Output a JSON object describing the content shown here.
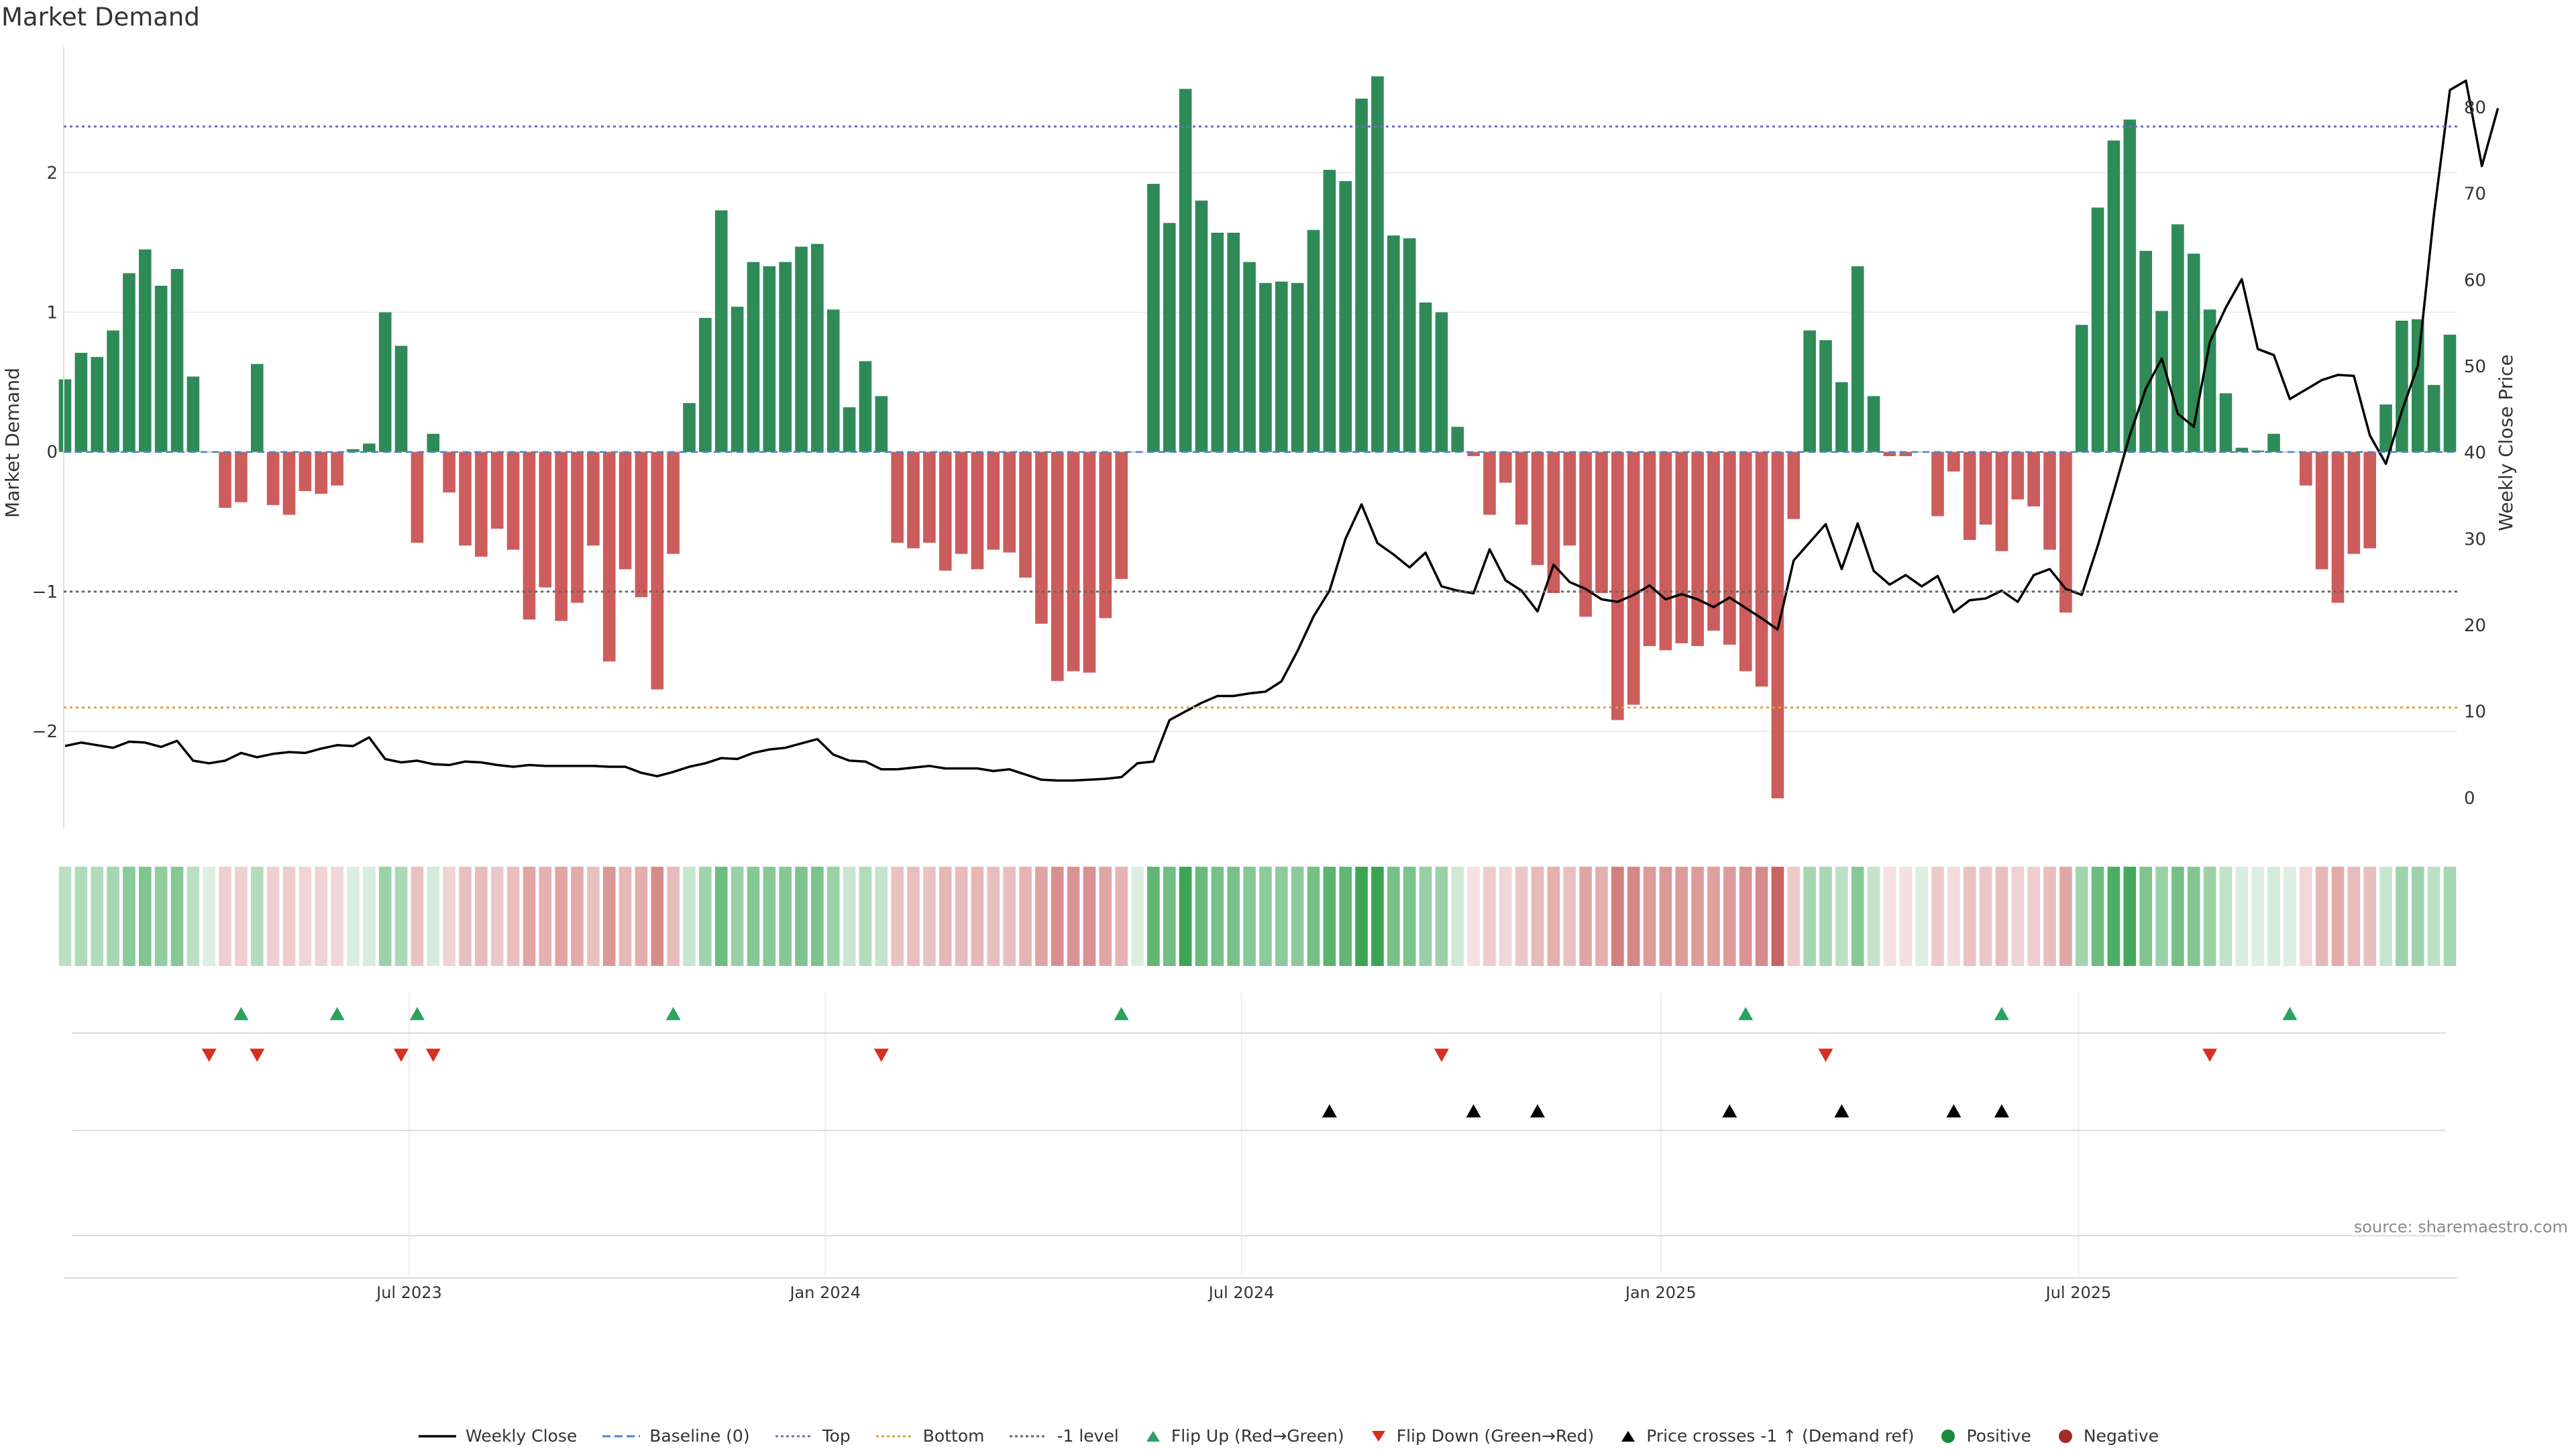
{
  "chart_data": {
    "type": "bar",
    "title": "Market Demand",
    "ylabel_left": "Market Demand",
    "ylabel_right": "Weekly Close Price",
    "source": "source: sharemaestro.com",
    "ylim_left": [
      -2.6,
      2.9
    ],
    "ylim_right": [
      -2,
      87
    ],
    "left_ticks": [
      {
        "v": 2,
        "label": "2"
      },
      {
        "v": 1,
        "label": "1"
      },
      {
        "v": 0,
        "label": "0"
      },
      {
        "v": -1,
        "label": "−1"
      },
      {
        "v": -2,
        "label": "−2"
      }
    ],
    "right_ticks": [
      {
        "v": 80,
        "label": "80"
      },
      {
        "v": 70,
        "label": "70"
      },
      {
        "v": 60,
        "label": "60"
      },
      {
        "v": 50,
        "label": "50"
      },
      {
        "v": 40,
        "label": "40"
      },
      {
        "v": 30,
        "label": "30"
      },
      {
        "v": 20,
        "label": "20"
      },
      {
        "v": 10,
        "label": "10"
      },
      {
        "v": 0,
        "label": "0"
      }
    ],
    "x_ticks": [
      {
        "i": 21.5,
        "label": "Jul 2023"
      },
      {
        "i": 47.5,
        "label": "Jan 2024"
      },
      {
        "i": 73.5,
        "label": "Jul 2024"
      },
      {
        "i": 99.7,
        "label": "Jan 2025"
      },
      {
        "i": 125.8,
        "label": "Jul 2025"
      }
    ],
    "reference_lines": {
      "top": 2.33,
      "bottom": -1.83,
      "minus_one": -1.0,
      "baseline": 0
    },
    "market_demand": [
      0.52,
      0.71,
      0.68,
      0.87,
      1.28,
      1.45,
      1.19,
      1.31,
      0.54,
      0.0,
      -0.4,
      -0.36,
      0.63,
      -0.38,
      -0.45,
      -0.28,
      -0.3,
      -0.24,
      0.02,
      0.06,
      1.0,
      0.76,
      -0.65,
      0.13,
      -0.29,
      -0.67,
      -0.75,
      -0.55,
      -0.7,
      -1.2,
      -0.97,
      -1.21,
      -1.08,
      -0.67,
      -1.5,
      -0.84,
      -1.04,
      -1.7,
      -0.73,
      0.35,
      0.96,
      1.73,
      1.04,
      1.36,
      1.33,
      1.36,
      1.47,
      1.49,
      1.02,
      0.32,
      0.65,
      0.4,
      -0.65,
      -0.69,
      -0.65,
      -0.85,
      -0.73,
      -0.84,
      -0.7,
      -0.72,
      -0.9,
      -1.23,
      -1.64,
      -1.57,
      -1.58,
      -1.19,
      -0.91,
      0.0,
      1.92,
      1.64,
      2.6,
      1.8,
      1.57,
      1.57,
      1.36,
      1.21,
      1.22,
      1.21,
      1.59,
      2.02,
      1.94,
      2.53,
      2.69,
      1.55,
      1.53,
      1.07,
      1.0,
      0.18,
      -0.03,
      -0.45,
      -0.22,
      -0.52,
      -0.81,
      -1.01,
      -0.67,
      -1.18,
      -1.01,
      -1.92,
      -1.81,
      -1.39,
      -1.42,
      -1.37,
      -1.39,
      -1.28,
      -1.38,
      -1.57,
      -1.68,
      -2.48,
      -0.48,
      0.87,
      0.8,
      0.5,
      1.33,
      0.4,
      -0.03,
      -0.03,
      0.0,
      -0.46,
      -0.14,
      -0.63,
      -0.52,
      -0.71,
      -0.34,
      -0.39,
      -0.7,
      -1.15,
      0.91,
      1.75,
      2.23,
      2.38,
      1.44,
      1.01,
      1.63,
      1.42,
      1.02,
      0.42,
      0.03,
      0.01,
      0.13,
      0.0,
      -0.24,
      -0.84,
      -1.08,
      -0.73,
      -0.69,
      0.34,
      0.94,
      0.95,
      0.48,
      0.84
    ],
    "weekly_close": [
      6.0,
      6.4,
      6.1,
      5.8,
      6.5,
      6.4,
      5.9,
      6.6,
      4.3,
      4.0,
      4.3,
      5.2,
      4.7,
      5.1,
      5.3,
      5.2,
      5.7,
      6.1,
      6.0,
      7.0,
      4.5,
      4.1,
      4.3,
      3.9,
      3.8,
      4.2,
      4.1,
      3.8,
      3.6,
      3.8,
      3.7,
      3.7,
      3.7,
      3.7,
      3.6,
      3.6,
      2.9,
      2.5,
      3.0,
      3.6,
      4.0,
      4.6,
      4.5,
      5.2,
      5.6,
      5.8,
      6.3,
      6.8,
      5.0,
      4.3,
      4.2,
      3.3,
      3.3,
      3.5,
      3.7,
      3.4,
      3.4,
      3.4,
      3.1,
      3.3,
      2.7,
      2.1,
      2.0,
      2.0,
      2.1,
      2.2,
      2.4,
      4.0,
      4.2,
      9.0,
      10.0,
      11.0,
      11.8,
      11.8,
      12.1,
      12.3,
      13.5,
      17.0,
      21.0,
      24.0,
      30.0,
      34.0,
      29.5,
      28.2,
      26.7,
      28.4,
      24.5,
      24.0,
      23.7,
      28.8,
      25.2,
      24.0,
      21.6,
      27.0,
      25.0,
      24.2,
      23.0,
      22.7,
      23.5,
      24.6,
      23.0,
      23.6,
      23.0,
      22.1,
      23.2,
      22.0,
      20.8,
      19.5,
      27.5,
      29.6,
      31.7,
      26.5,
      31.8,
      26.3,
      24.7,
      25.8,
      24.5,
      25.7,
      21.5,
      22.9,
      23.1,
      24.0,
      22.7,
      25.8,
      26.5,
      24.2,
      23.5,
      29.2,
      35.5,
      42.0,
      47.4,
      50.9,
      44.5,
      43.0,
      52.8,
      56.8,
      60.1,
      52.0,
      51.3,
      46.2,
      47.3,
      48.4,
      49.0,
      48.9,
      42.0,
      38.7,
      44.8,
      50.1,
      67.5,
      82.0,
      83.1,
      73.2,
      79.9
    ],
    "flip_up_index": [
      11,
      17,
      22,
      38,
      66,
      105,
      121,
      139
    ],
    "flip_down_index": [
      9,
      12,
      21,
      23,
      51,
      86,
      110,
      134
    ],
    "price_cross_index": [
      79,
      88,
      92,
      104,
      111,
      118,
      121
    ],
    "legend": [
      {
        "label": "Weekly Close",
        "kind": "line-solid",
        "color": "#000000"
      },
      {
        "label": "Baseline (0)",
        "kind": "line-dash",
        "color": "#4a86c8"
      },
      {
        "label": "Top",
        "kind": "line-dot",
        "color": "#7070a0"
      },
      {
        "label": "Bottom",
        "kind": "line-dot",
        "color": "#e0a040"
      },
      {
        "label": "-1 level",
        "kind": "line-dot",
        "color": "#666666"
      },
      {
        "label": "Flip Up (Red→Green)",
        "kind": "tri-up",
        "color": "#2ca25f"
      },
      {
        "label": "Flip Down (Green→Red)",
        "kind": "tri-down",
        "color": "#d7301f"
      },
      {
        "label": "Price crosses -1 ↑ (Demand ref)",
        "kind": "tri-up",
        "color": "#000000"
      },
      {
        "label": "Positive",
        "kind": "dot",
        "color": "#1a8a3a"
      },
      {
        "label": "Negative",
        "kind": "dot",
        "color": "#a52a2a"
      }
    ]
  },
  "colors": {
    "positive_bar": "#2e8b57",
    "negative_bar": "#cd5c5c",
    "price_line": "#000000",
    "top_line": "#7070c0",
    "bottom_line": "#e0a040",
    "minus_one_line": "#666666",
    "baseline": "#4a86c8",
    "flip_up": "#2ca25f",
    "flip_down": "#d7301f",
    "cross": "#000000"
  }
}
